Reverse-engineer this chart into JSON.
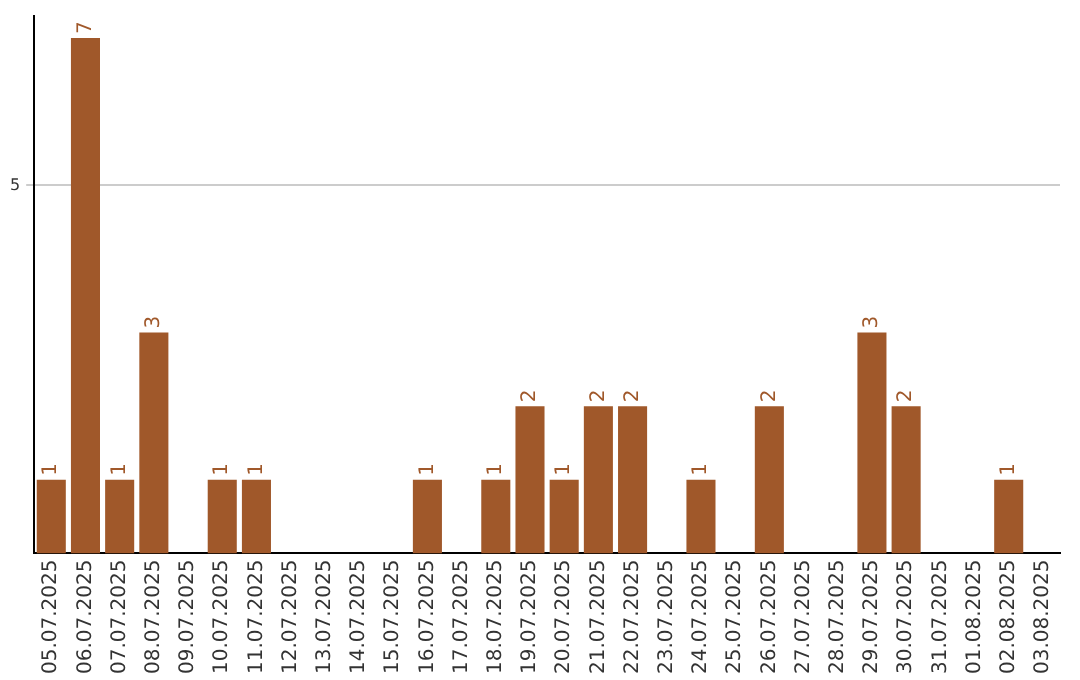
{
  "chart_data": {
    "type": "bar",
    "categories": [
      "05.07.2025",
      "06.07.2025",
      "07.07.2025",
      "08.07.2025",
      "09.07.2025",
      "10.07.2025",
      "11.07.2025",
      "12.07.2025",
      "13.07.2025",
      "14.07.2025",
      "15.07.2025",
      "16.07.2025",
      "17.07.2025",
      "18.07.2025",
      "19.07.2025",
      "20.07.2025",
      "21.07.2025",
      "22.07.2025",
      "23.07.2025",
      "24.07.2025",
      "25.07.2025",
      "26.07.2025",
      "27.07.2025",
      "28.07.2025",
      "29.07.2025",
      "30.07.2025",
      "31.07.2025",
      "01.08.2025",
      "02.08.2025",
      "03.08.2025"
    ],
    "values": [
      1,
      7,
      1,
      3,
      0,
      1,
      1,
      0,
      0,
      0,
      0,
      1,
      0,
      1,
      2,
      1,
      2,
      2,
      0,
      1,
      0,
      2,
      0,
      0,
      3,
      2,
      0,
      0,
      1,
      0
    ],
    "value_labels": [
      "1",
      "7",
      "1",
      "3",
      null,
      "1",
      "1",
      null,
      null,
      null,
      null,
      "1",
      null,
      "1",
      "2",
      "1",
      "2",
      "2",
      null,
      "1",
      null,
      "2",
      null,
      null,
      "3",
      "2",
      null,
      null,
      "1",
      null
    ],
    "color": "#a0582a",
    "ylim": [
      0,
      7.3
    ],
    "yticks": [
      5
    ],
    "grid": "y",
    "legend": false
  }
}
